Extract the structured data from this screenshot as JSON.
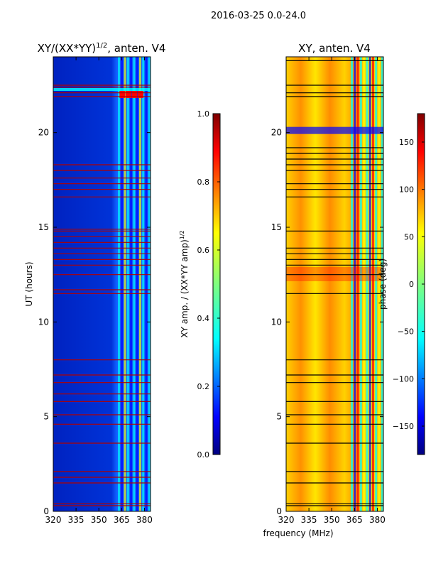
{
  "figure": {
    "suptitle": "2016-03-25 0.0-24.0"
  },
  "colors": {
    "jet_low": "#00007f",
    "jet_blue": "#0000ff",
    "jet_cyan": "#00ffff",
    "jet_yellow": "#ffff00",
    "jet_red": "#ff0000",
    "jet_high": "#7f0000",
    "flag_line_red": "#b00000",
    "flag_line_dark": "#000000"
  },
  "chart_data": [
    {
      "type": "heatmap",
      "title": "XY/(XX*YY)",
      "title_exponent": "1/2",
      "title_suffix": ", anten. V4",
      "xlabel": "",
      "ylabel": "UT (hours)",
      "xlim": [
        320,
        384
      ],
      "ylim": [
        0,
        24
      ],
      "xticks": [
        320,
        335,
        350,
        365,
        380
      ],
      "yticks": [
        0,
        5,
        10,
        15,
        20
      ],
      "colorbar": {
        "label": "XY amp. / (XX*YY amp)",
        "label_exponent": "1/2",
        "vmin": 0.0,
        "vmax": 1.0,
        "ticks": [
          "0.0",
          "0.2",
          "0.4",
          "0.6",
          "0.8",
          "1.0"
        ]
      },
      "flagged_hours": [
        0.3,
        0.4,
        1.5,
        1.8,
        2.1,
        3.6,
        4.6,
        5.1,
        5.8,
        6.2,
        6.8,
        7.2,
        8.0,
        11.5,
        11.7,
        12.5,
        13.0,
        13.3,
        13.6,
        13.9,
        14.2,
        14.5,
        14.8,
        14.9,
        16.6,
        17.0,
        17.3,
        17.6,
        18.0,
        18.3,
        21.9,
        22.1,
        22.4,
        22.5
      ]
    },
    {
      "type": "heatmap",
      "title": "XY, anten. V4",
      "xlabel": "frequency (MHz)",
      "ylabel": "",
      "xlim": [
        320,
        384
      ],
      "ylim": [
        0,
        24
      ],
      "xticks": [
        320,
        335,
        350,
        365,
        380
      ],
      "yticks": [
        0,
        5,
        10,
        15,
        20
      ],
      "colorbar": {
        "label": "phase (deg)",
        "vmin": -180,
        "vmax": 180,
        "ticks": [
          "−150",
          "−100",
          "−50",
          "0",
          "50",
          "100",
          "150"
        ]
      },
      "flagged_hours": [
        0.3,
        0.4,
        1.5,
        2.1,
        3.6,
        4.6,
        5.1,
        5.8,
        6.8,
        7.2,
        8.0,
        11.5,
        12.5,
        13.0,
        13.3,
        13.6,
        13.9,
        14.8,
        16.6,
        17.0,
        17.3,
        18.0,
        18.3,
        18.6,
        18.9,
        19.2,
        21.9,
        22.1,
        22.5,
        23.8
      ]
    }
  ]
}
